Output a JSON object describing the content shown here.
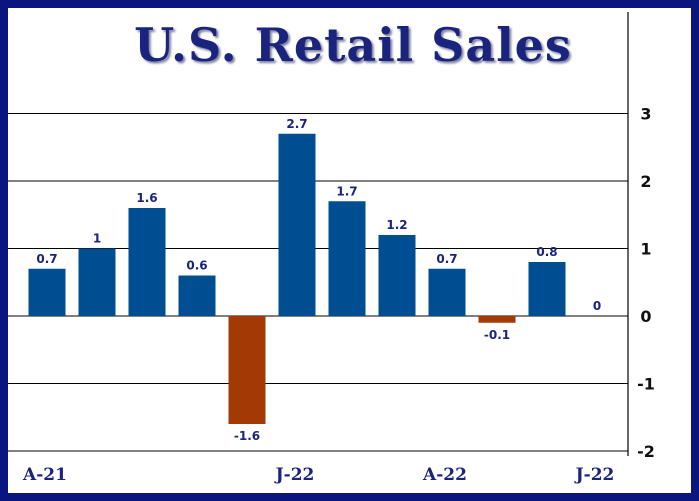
{
  "chart_data": {
    "type": "bar",
    "title": "U.S. Retail Sales",
    "xlabel": "",
    "ylabel": "",
    "ylim": [
      -2,
      3
    ],
    "yticks": [
      3,
      2,
      1,
      0,
      -1,
      -2
    ],
    "grid": true,
    "categories": [
      "A-21",
      "",
      "",
      "",
      "",
      "J-22",
      "",
      "",
      "A-22",
      "",
      "",
      "J-22"
    ],
    "values": [
      0.7,
      1,
      1.6,
      0.6,
      -1.6,
      2.7,
      1.7,
      1.2,
      0.7,
      -0.1,
      0.8,
      0
    ],
    "value_labels": [
      "0.7",
      "1",
      "1.6",
      "0.6",
      "-1.6",
      "2.7",
      "1.7",
      "1.2",
      "0.7",
      "-0.1",
      "0.8",
      "0"
    ],
    "colors": {
      "positive": "#004e92",
      "negative": "#a33a06",
      "frame": "#0a1580",
      "title": "#1a237e",
      "labels": "#1a237e"
    }
  }
}
